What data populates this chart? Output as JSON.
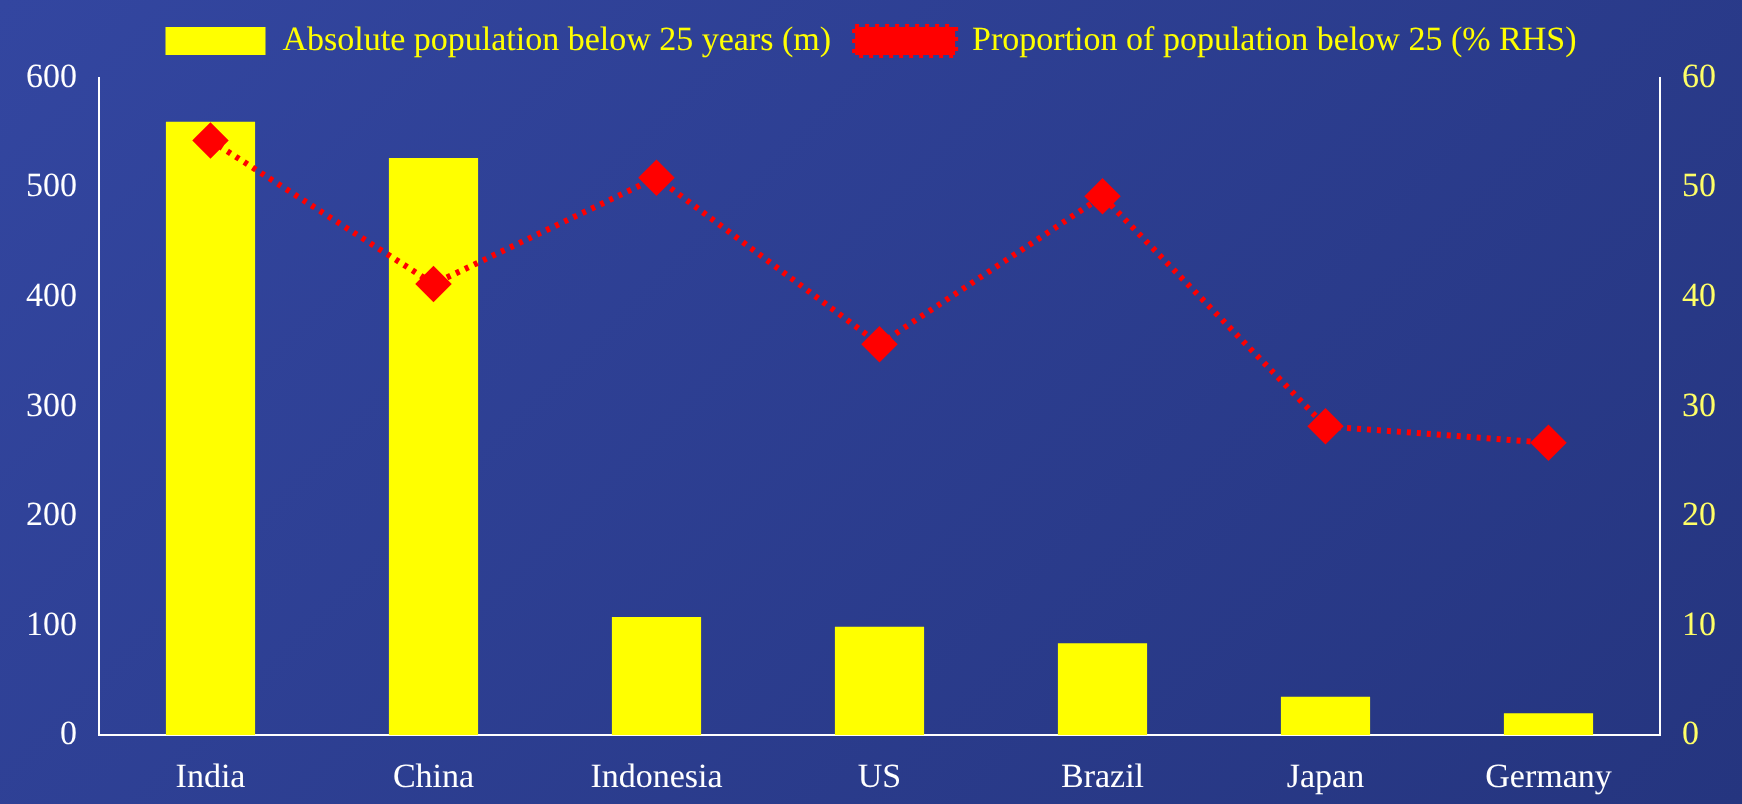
{
  "chart_data": {
    "type": "bar",
    "categories": [
      "India",
      "China",
      "Indonesia",
      "US",
      "Brazil",
      "Japan",
      "Germany"
    ],
    "series": [
      {
        "name": "Absolute population below 25 years (m)",
        "color": "#ffff00",
        "values": [
          560,
          527,
          108,
          99,
          84,
          35,
          20
        ]
      },
      {
        "name": "Proportion of population below 25 (% RHS)",
        "type": "line",
        "axis": "y2",
        "color": "#ff0000",
        "marker": "diamond",
        "line_style": "dotted",
        "values": [
          54.3,
          41.2,
          50.9,
          35.7,
          49.2,
          28.2,
          26.7
        ]
      }
    ],
    "ylim": [
      0,
      600
    ],
    "yticks": [
      0,
      100,
      200,
      300,
      400,
      500,
      600
    ],
    "y2lim": [
      0,
      60
    ],
    "y2ticks": [
      0,
      10,
      20,
      30,
      40,
      50,
      60
    ],
    "grid": false,
    "legend": "top"
  }
}
